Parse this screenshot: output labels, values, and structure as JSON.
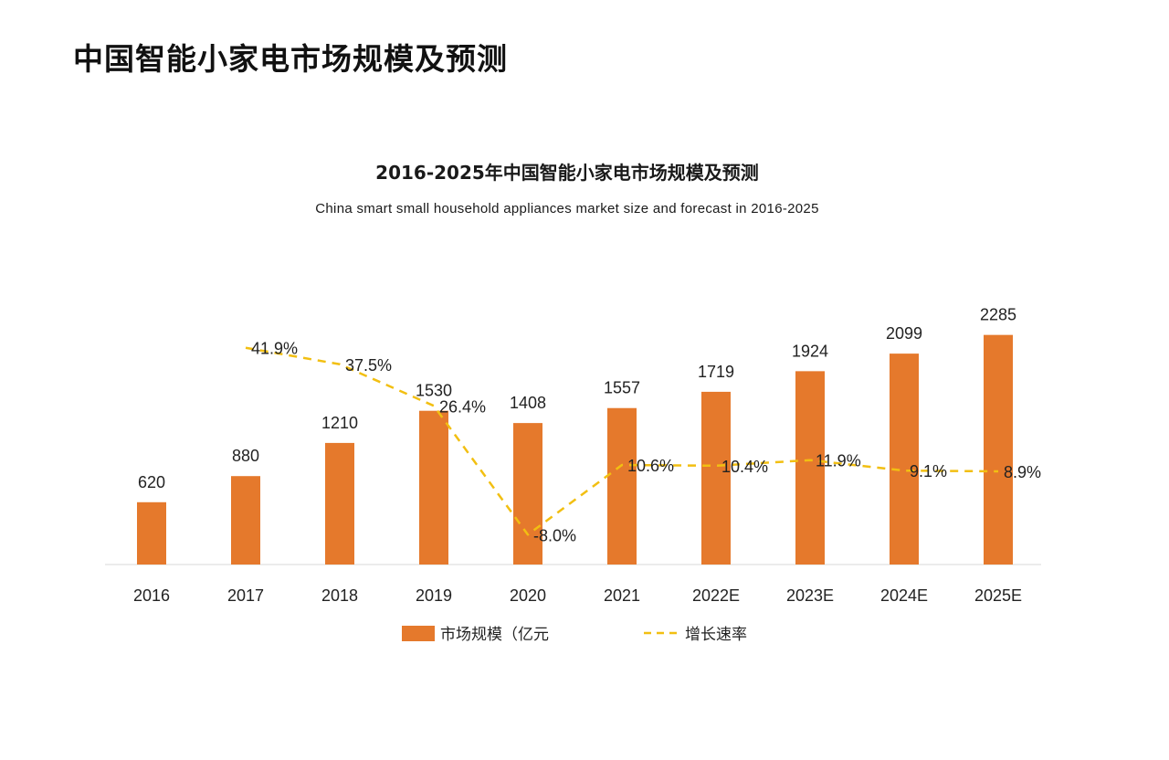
{
  "page_heading": "中国智能小家电市场规模及预测",
  "colors": {
    "bar": "#E5792C",
    "rate_line": "#F2BF12",
    "axis": "#d9d9d9"
  },
  "chart_data": {
    "type": "bar",
    "title": "2016-2025年中国智能小家电市场规模及预测",
    "subtitle": "China smart small household appliances market size and forecast in 2016-2025",
    "categories": [
      "2016",
      "2017",
      "2018",
      "2019",
      "2020",
      "2021",
      "2022E",
      "2023E",
      "2024E",
      "2025E"
    ],
    "series": [
      {
        "name": "市场规模（亿元",
        "type": "bar",
        "axis": "left",
        "values": [
          620,
          880,
          1210,
          1530,
          1408,
          1557,
          1719,
          1924,
          2099,
          2285
        ]
      },
      {
        "name": "增长速率",
        "type": "line",
        "style": "dashed",
        "axis": "right",
        "values": [
          null,
          41.9,
          37.5,
          26.4,
          -8.0,
          10.6,
          10.4,
          11.9,
          9.1,
          8.9
        ],
        "labels": [
          null,
          "41.9%",
          "37.5%",
          "26.4%",
          "-8.0%",
          "10.6%",
          "10.4%",
          "11.9%",
          "9.1%",
          "8.9%"
        ]
      }
    ],
    "ylim_left": [
      0,
      2400
    ],
    "ylim_right": [
      -20,
      55
    ],
    "grid": false,
    "legend": "bottom-center"
  }
}
